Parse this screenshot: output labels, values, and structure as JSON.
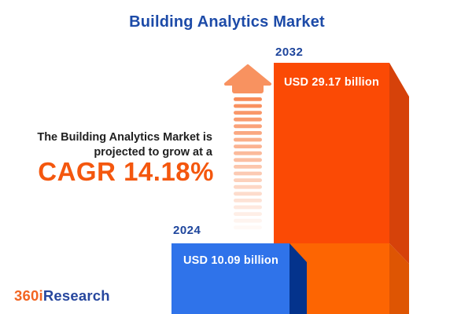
{
  "title": "Building Analytics Market",
  "tagline": {
    "line1": "The Building Analytics Market is",
    "line2": "projected to grow at a",
    "cagr": "CAGR 14.18%"
  },
  "chart_data": {
    "type": "bar",
    "title": "Building Analytics Market",
    "categories": [
      "2024",
      "2032"
    ],
    "values": [
      10.09,
      29.17
    ],
    "unit": "USD billion",
    "value_labels": [
      "USD 10.09 billion",
      "USD 29.17 billion"
    ],
    "cagr_percent": 14.18,
    "annotation": "The Building Analytics Market is projected to grow at a CAGR 14.18%",
    "legend_position": "none",
    "grid": false,
    "colors": {
      "bar_2024": "#2F73EA",
      "bar_2032": "#FB4A05"
    }
  },
  "bars": [
    {
      "year": "2024",
      "value_label": "USD 10.09 billion"
    },
    {
      "year": "2032",
      "value_label": "USD 29.17 billion"
    }
  ],
  "logo": {
    "part1": "360i",
    "part2": "Research"
  },
  "colors": {
    "title_blue": "#1D4BA8",
    "year_label_blue": "#1E459C",
    "body_text": "#212121",
    "accent_orange": "#F4570E",
    "blue_bar_face": "#2F73EA",
    "blue_bar_side": "#04338C",
    "orange_bar_face": "#FB4A05",
    "orange_bar_side": "#D6420A",
    "orange_base_face": "#FD6502",
    "orange_base_side": "#DE5503",
    "arrow_salmon": "#F89260",
    "logo_orange": "#F26522",
    "logo_blue": "#27479E"
  }
}
